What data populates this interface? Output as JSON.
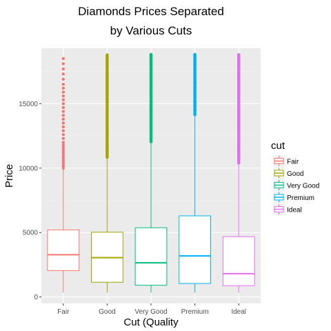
{
  "chart_data": {
    "type": "box",
    "title_lines": [
      "Diamonds Prices Separated",
      "by Various Cuts"
    ],
    "xlabel": "Cut (Quality",
    "ylabel": "Price",
    "categories": [
      "Fair",
      "Good",
      "Very Good",
      "Premium",
      "Ideal"
    ],
    "ylim": [
      -500,
      19300
    ],
    "yticks": [
      0,
      5000,
      10000,
      15000
    ],
    "ytick_labels": [
      "0",
      "5000",
      "10000",
      "15000"
    ],
    "grid": true,
    "legend": {
      "title": "cut",
      "position": "right",
      "entries": [
        "Fair",
        "Good",
        "Very Good",
        "Premium",
        "Ideal"
      ]
    },
    "series": [
      {
        "name": "Fair",
        "color": "#F8766D",
        "whisker_low": 337,
        "q1": 2050,
        "median": 3282,
        "q3": 5206,
        "whisker_high": 9950,
        "outliers": [
          10000,
          10200,
          10400,
          10600,
          10800,
          11000,
          11200,
          11400,
          11600,
          11800,
          12000,
          12300,
          12600,
          12900,
          13200,
          13500,
          13800,
          14100,
          14400,
          14700,
          15000,
          15300,
          15600,
          15900,
          16200,
          16500,
          16900,
          17300,
          17700,
          18100,
          18500
        ]
      },
      {
        "name": "Good",
        "color": "#A3A500",
        "whisker_low": 327,
        "q1": 1145,
        "median": 3050,
        "q3": 5028,
        "whisker_high": 10850,
        "outlier_range": [
          10850,
          18790
        ]
      },
      {
        "name": "Very Good",
        "color": "#00BF7D",
        "whisker_low": 336,
        "q1": 912,
        "median": 2648,
        "q3": 5373,
        "whisker_high": 12050,
        "outlier_range": [
          12050,
          18820
        ]
      },
      {
        "name": "Premium",
        "color": "#00B0F6",
        "whisker_low": 326,
        "q1": 1046,
        "median": 3185,
        "q3": 6296,
        "whisker_high": 14150,
        "outlier_range": [
          14150,
          18820
        ]
      },
      {
        "name": "Ideal",
        "color": "#E76BF3",
        "whisker_low": 326,
        "q1": 878,
        "median": 1810,
        "q3": 4678,
        "whisker_high": 10400,
        "outlier_range": [
          10400,
          18800
        ]
      }
    ]
  }
}
